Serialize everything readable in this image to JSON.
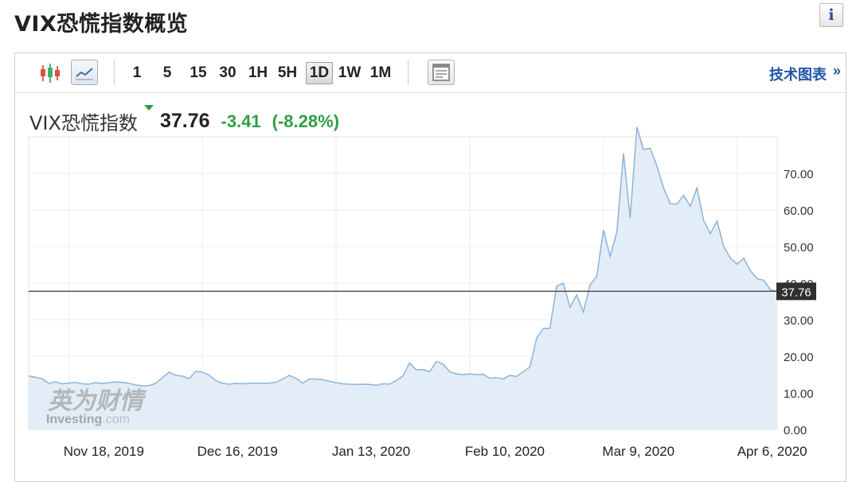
{
  "header": {
    "title": "VIX恐慌指数概览",
    "info_icon": "info-icon"
  },
  "toolbar": {
    "chart_types": [
      {
        "name": "candlestick-icon"
      },
      {
        "name": "line-chart-icon",
        "active": true
      }
    ],
    "timeframes": [
      "1",
      "5",
      "15",
      "30",
      "1H",
      "5H",
      "1D",
      "1W",
      "1M"
    ],
    "active_timeframe": "1D",
    "layout_icon": "layout-icon",
    "technical_chart_label": "技术图表",
    "technical_chart_arrow": "»"
  },
  "quote": {
    "name": "VIX恐慌指数",
    "price": "37.76",
    "change": "-3.41",
    "change_pct": "(-8.28%)",
    "change_color": "#2ea043"
  },
  "watermark": {
    "cn": "英为财情",
    "en": "Investing",
    "en_suffix": ".com"
  },
  "chart_data": {
    "type": "area",
    "title": "",
    "xlabel": "",
    "ylabel": "",
    "ylim": [
      0,
      80
    ],
    "yticks": [
      "0.00",
      "10.00",
      "20.00",
      "30.00",
      "40.00",
      "50.00",
      "60.00",
      "70.00"
    ],
    "xticks": [
      "Nov 18, 2019",
      "Dec 16, 2019",
      "Jan 13, 2020",
      "Feb 10, 2020",
      "Mar 9, 2020",
      "Apr 6, 2020"
    ],
    "current_value_label": "37.76",
    "current_value": 37.76,
    "line_color": "#8cb3d9",
    "fill_color": "#e3edf7",
    "grid": true,
    "series": [
      {
        "values": [
          14.6,
          14.3,
          13.9,
          12.6,
          13.0,
          12.5,
          12.7,
          12.9,
          12.5,
          12.4,
          12.8,
          12.6,
          12.8,
          13.0,
          12.9,
          12.6,
          12.2,
          11.9,
          12.0,
          12.6,
          14.1,
          15.7,
          14.8,
          14.6,
          13.9,
          15.9,
          15.7,
          14.9,
          13.4,
          12.6,
          12.4,
          12.6,
          12.5,
          12.6,
          12.7,
          12.6,
          12.7,
          12.9,
          13.8,
          14.8,
          14.0,
          12.7,
          13.8,
          13.8,
          13.6,
          13.2,
          12.8,
          12.5,
          12.4,
          12.3,
          12.4,
          12.3,
          12.1,
          12.5,
          12.4,
          13.4,
          14.6,
          18.2,
          16.3,
          16.4,
          15.8,
          18.6,
          17.9,
          15.8,
          15.2,
          15.0,
          15.2,
          15.0,
          15.1,
          14.0,
          14.2,
          13.8,
          14.8,
          14.5,
          15.8,
          17.1,
          25.0,
          27.6,
          27.7,
          39.2,
          40.0,
          33.4,
          36.8,
          32.1,
          39.5,
          41.9,
          54.5,
          47.3,
          53.9,
          75.5,
          57.8,
          82.7,
          76.5,
          76.9,
          72.0,
          66.0,
          61.7,
          61.6,
          64.0,
          61.0,
          66.0,
          57.1,
          53.5,
          57.0,
          50.0,
          46.8,
          45.2,
          46.8,
          43.4,
          41.2,
          40.8,
          38.2,
          37.8
        ]
      }
    ]
  }
}
